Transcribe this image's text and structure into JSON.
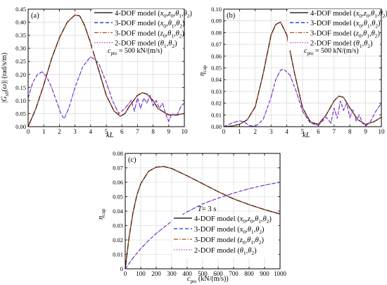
{
  "chart_data": [
    {
      "panel": "(a)",
      "type": "line",
      "xlabel": "kL",
      "ylabel": "|G_{x_0}(ω)| (rad/s/m)",
      "xlim": [
        0,
        10
      ],
      "ylim": [
        0,
        0.45
      ],
      "xticks": [
        0,
        1,
        2,
        3,
        4,
        5,
        6,
        7,
        8,
        9,
        10
      ],
      "yticks": [
        0.0,
        0.05,
        0.1,
        0.15,
        0.2,
        0.25,
        0.3,
        0.35,
        0.4,
        0.45
      ],
      "ytick_labels": [
        "0.00",
        "0.05",
        "0.10",
        "0.15",
        "0.20",
        "0.25",
        "0.30",
        "0.35",
        "0.40",
        "0.45"
      ],
      "grid": true,
      "annotation": "c_pto = 500 kN/(m/s)",
      "series": [
        {
          "name": "4-DOF model (x0,z0,θ1,θ2)",
          "color": "#000000",
          "dash": "solid",
          "x": [
            0,
            0.5,
            1,
            1.5,
            2,
            2.5,
            3,
            3.3,
            3.6,
            4,
            4.5,
            5,
            5.5,
            5.9,
            6.2,
            6.5,
            7,
            7.3,
            7.6,
            8,
            8.3,
            8.7,
            9,
            9.5,
            10
          ],
          "y": [
            0,
            0.07,
            0.16,
            0.26,
            0.34,
            0.4,
            0.428,
            0.424,
            0.39,
            0.32,
            0.22,
            0.12,
            0.06,
            0.04,
            0.05,
            0.08,
            0.12,
            0.13,
            0.125,
            0.1,
            0.07,
            0.055,
            0.045,
            0.045,
            0.05
          ]
        },
        {
          "name": "3-DOF model (x0,θ1,θ2)",
          "color": "#1f2ccf",
          "dash": "dashed",
          "x": [
            0,
            0.3,
            0.6,
            0.9,
            1.2,
            1.5,
            1.8,
            2.1,
            2.3,
            2.6,
            3,
            3.5,
            4,
            4.5,
            5,
            5.4,
            5.8,
            6.2,
            6.6,
            6.8,
            7,
            7.2,
            7.4,
            7.6,
            7.8,
            8,
            8.2,
            8.4,
            8.6,
            8.8,
            9,
            9.2,
            9.5,
            9.8,
            10
          ],
          "y": [
            0.11,
            0.17,
            0.2,
            0.21,
            0.19,
            0.15,
            0.1,
            0.05,
            0.03,
            0.07,
            0.15,
            0.23,
            0.268,
            0.245,
            0.17,
            0.1,
            0.05,
            0.07,
            0.1,
            0.06,
            0.11,
            0.07,
            0.11,
            0.09,
            0.12,
            0.08,
            0.1,
            0.07,
            0.09,
            0.05,
            0.02,
            0.05,
            0.04,
            0.08,
            0.09
          ]
        },
        {
          "name": "3-DOF model (z0,θ1,θ2)",
          "color": "#b34a1a",
          "dash": "dashdot",
          "x": [
            0,
            0.5,
            1,
            1.5,
            2,
            2.5,
            3,
            3.3,
            3.6,
            4,
            4.5,
            5,
            5.5,
            5.9,
            6.2,
            6.5,
            7,
            7.3,
            7.6,
            8,
            8.3,
            8.7,
            9,
            9.5,
            10
          ],
          "y": [
            0,
            0.07,
            0.16,
            0.26,
            0.34,
            0.4,
            0.428,
            0.424,
            0.39,
            0.32,
            0.22,
            0.12,
            0.06,
            0.04,
            0.05,
            0.08,
            0.12,
            0.13,
            0.125,
            0.1,
            0.07,
            0.055,
            0.045,
            0.045,
            0.05
          ]
        },
        {
          "name": "2-DOF model (θ1,θ2)",
          "color": "#c040c0",
          "dash": "dotted",
          "x": [
            0,
            0.3,
            0.6,
            0.9,
            1.2,
            1.5,
            1.8,
            2.1,
            2.3,
            2.6,
            3,
            3.5,
            4,
            4.5,
            5,
            5.4,
            5.8,
            6.2,
            6.6,
            6.8,
            7,
            7.2,
            7.4,
            7.6,
            7.8,
            8,
            8.2,
            8.4,
            8.6,
            8.8,
            9,
            9.2,
            9.5,
            9.8,
            10
          ],
          "y": [
            0.11,
            0.17,
            0.2,
            0.21,
            0.19,
            0.15,
            0.1,
            0.05,
            0.03,
            0.07,
            0.15,
            0.23,
            0.268,
            0.245,
            0.17,
            0.1,
            0.05,
            0.07,
            0.1,
            0.06,
            0.11,
            0.07,
            0.11,
            0.09,
            0.12,
            0.08,
            0.1,
            0.07,
            0.09,
            0.05,
            0.02,
            0.05,
            0.04,
            0.08,
            0.09
          ]
        }
      ]
    },
    {
      "panel": "(b)",
      "type": "line",
      "xlabel": "kL",
      "ylabel": "η_cap",
      "xlim": [
        0,
        10
      ],
      "ylim": [
        0,
        0.1
      ],
      "xticks": [
        0,
        1,
        2,
        3,
        4,
        5,
        6,
        7,
        8,
        9,
        10
      ],
      "yticks": [
        0.0,
        0.01,
        0.02,
        0.03,
        0.04,
        0.05,
        0.06,
        0.07,
        0.08,
        0.09,
        0.1
      ],
      "ytick_labels": [
        "0.00",
        "0.01",
        "0.02",
        "0.03",
        "0.04",
        "0.05",
        "0.06",
        "0.07",
        "0.08",
        "0.09",
        "0.10"
      ],
      "grid": true,
      "annotation": "c_pto = 500 kN/(m/s)",
      "series": [
        {
          "name": "4-DOF model (x0,z0,θ1,θ2)",
          "color": "#000000",
          "dash": "solid",
          "x": [
            0,
            0.5,
            1,
            1.5,
            2,
            2.5,
            3,
            3.3,
            3.6,
            4,
            4.5,
            5,
            5.5,
            6,
            6.5,
            7,
            7.3,
            7.6,
            8,
            8.5,
            9,
            9.5,
            10
          ],
          "y": [
            0,
            0.0005,
            0.002,
            0.006,
            0.017,
            0.045,
            0.078,
            0.087,
            0.089,
            0.078,
            0.045,
            0.016,
            0.004,
            0.002,
            0.01,
            0.022,
            0.026,
            0.025,
            0.016,
            0.006,
            0.002,
            0.004,
            0.008
          ]
        },
        {
          "name": "3-DOF model (x0,θ1,θ2)",
          "color": "#1f2ccf",
          "dash": "dashed",
          "x": [
            0,
            0.5,
            1,
            1.3,
            1.6,
            2,
            2.5,
            3,
            3.3,
            3.6,
            3.8,
            4.2,
            4.6,
            5,
            5.5,
            6,
            6.5,
            6.8,
            7,
            7.2,
            7.4,
            7.6,
            7.8,
            8,
            8.2,
            8.4,
            8.6,
            8.8,
            9,
            9.3,
            9.6,
            10
          ],
          "y": [
            0,
            0.003,
            0.005,
            0.004,
            0.001,
            0.0002,
            0.006,
            0.025,
            0.04,
            0.048,
            0.049,
            0.044,
            0.03,
            0.013,
            0.003,
            0.001,
            0.008,
            0.003,
            0.016,
            0.007,
            0.022,
            0.014,
            0.02,
            0.008,
            0.014,
            0.005,
            0.01,
            0.003,
            0.0005,
            0.004,
            0.012,
            0.02
          ]
        },
        {
          "name": "3-DOF model (z0,θ1,θ2)",
          "color": "#b34a1a",
          "dash": "dashdot",
          "x": [
            0,
            0.5,
            1,
            1.5,
            2,
            2.5,
            3,
            3.3,
            3.6,
            4,
            4.5,
            5,
            5.5,
            6,
            6.5,
            7,
            7.3,
            7.6,
            8,
            8.5,
            9,
            9.5,
            10
          ],
          "y": [
            0,
            0.0005,
            0.002,
            0.006,
            0.017,
            0.045,
            0.078,
            0.087,
            0.089,
            0.078,
            0.045,
            0.016,
            0.004,
            0.002,
            0.01,
            0.022,
            0.026,
            0.025,
            0.016,
            0.006,
            0.002,
            0.004,
            0.008
          ]
        },
        {
          "name": "2-DOF model (θ1,θ2)",
          "color": "#c040c0",
          "dash": "dotted",
          "x": [
            0,
            0.5,
            1,
            1.3,
            1.6,
            2,
            2.5,
            3,
            3.3,
            3.6,
            3.8,
            4.2,
            4.6,
            5,
            5.5,
            6,
            6.5,
            6.8,
            7,
            7.2,
            7.4,
            7.6,
            7.8,
            8,
            8.2,
            8.4,
            8.6,
            8.8,
            9,
            9.3,
            9.6,
            10
          ],
          "y": [
            0,
            0.003,
            0.005,
            0.004,
            0.001,
            0.0002,
            0.006,
            0.025,
            0.04,
            0.048,
            0.049,
            0.044,
            0.03,
            0.013,
            0.003,
            0.001,
            0.008,
            0.003,
            0.016,
            0.007,
            0.022,
            0.014,
            0.02,
            0.008,
            0.014,
            0.005,
            0.01,
            0.003,
            0.0005,
            0.004,
            0.012,
            0.02
          ]
        }
      ]
    },
    {
      "panel": "(c)",
      "type": "line",
      "xlabel": "c_pto (kN/(m/s))",
      "ylabel": "η_cap",
      "xlim": [
        0,
        1000
      ],
      "ylim": [
        0,
        0.08
      ],
      "xticks": [
        0,
        100,
        200,
        300,
        400,
        500,
        600,
        700,
        800,
        900,
        1000
      ],
      "yticks": [
        0,
        0.01,
        0.02,
        0.03,
        0.04,
        0.05,
        0.06,
        0.07,
        0.08
      ],
      "ytick_labels": [
        "0",
        "0.01",
        "0.02",
        "0.03",
        "0.04",
        "0.05",
        "0.06",
        "0.07",
        "0.08"
      ],
      "grid": true,
      "annotation": "T = 3 s",
      "series": [
        {
          "name": "4-DOF model (x0,z0,θ1,θ2)",
          "color": "#000000",
          "dash": "solid",
          "x": [
            0,
            25,
            50,
            75,
            100,
            150,
            200,
            250,
            300,
            400,
            500,
            600,
            700,
            800,
            900,
            1000
          ],
          "y": [
            0,
            0.022,
            0.039,
            0.051,
            0.059,
            0.0675,
            0.0705,
            0.071,
            0.0695,
            0.0645,
            0.059,
            0.0535,
            0.0485,
            0.0445,
            0.041,
            0.038
          ]
        },
        {
          "name": "3-DOF model (x0,θ1,θ2)",
          "color": "#1f2ccf",
          "dash": "dashed",
          "x": [
            0,
            50,
            100,
            150,
            200,
            300,
            400,
            500,
            600,
            700,
            800,
            900,
            1000
          ],
          "y": [
            0,
            0.0075,
            0.014,
            0.0195,
            0.0245,
            0.033,
            0.0395,
            0.045,
            0.049,
            0.0525,
            0.0555,
            0.058,
            0.06
          ]
        },
        {
          "name": "3-DOF model (z0,θ1,θ2)",
          "color": "#b34a1a",
          "dash": "dashdot",
          "x": [
            0,
            25,
            50,
            75,
            100,
            150,
            200,
            250,
            300,
            400,
            500,
            600,
            700,
            800,
            900,
            1000
          ],
          "y": [
            0,
            0.022,
            0.039,
            0.051,
            0.059,
            0.0675,
            0.0705,
            0.071,
            0.0695,
            0.0645,
            0.059,
            0.0535,
            0.0485,
            0.0445,
            0.041,
            0.038
          ]
        },
        {
          "name": "2-DOF model (θ1,θ2)",
          "color": "#c040c0",
          "dash": "dotted",
          "x": [
            0,
            50,
            100,
            150,
            200,
            300,
            400,
            500,
            600,
            700,
            800,
            900,
            1000
          ],
          "y": [
            0,
            0.0075,
            0.014,
            0.0195,
            0.0245,
            0.033,
            0.0395,
            0.045,
            0.049,
            0.0525,
            0.0555,
            0.058,
            0.06
          ]
        }
      ]
    }
  ]
}
